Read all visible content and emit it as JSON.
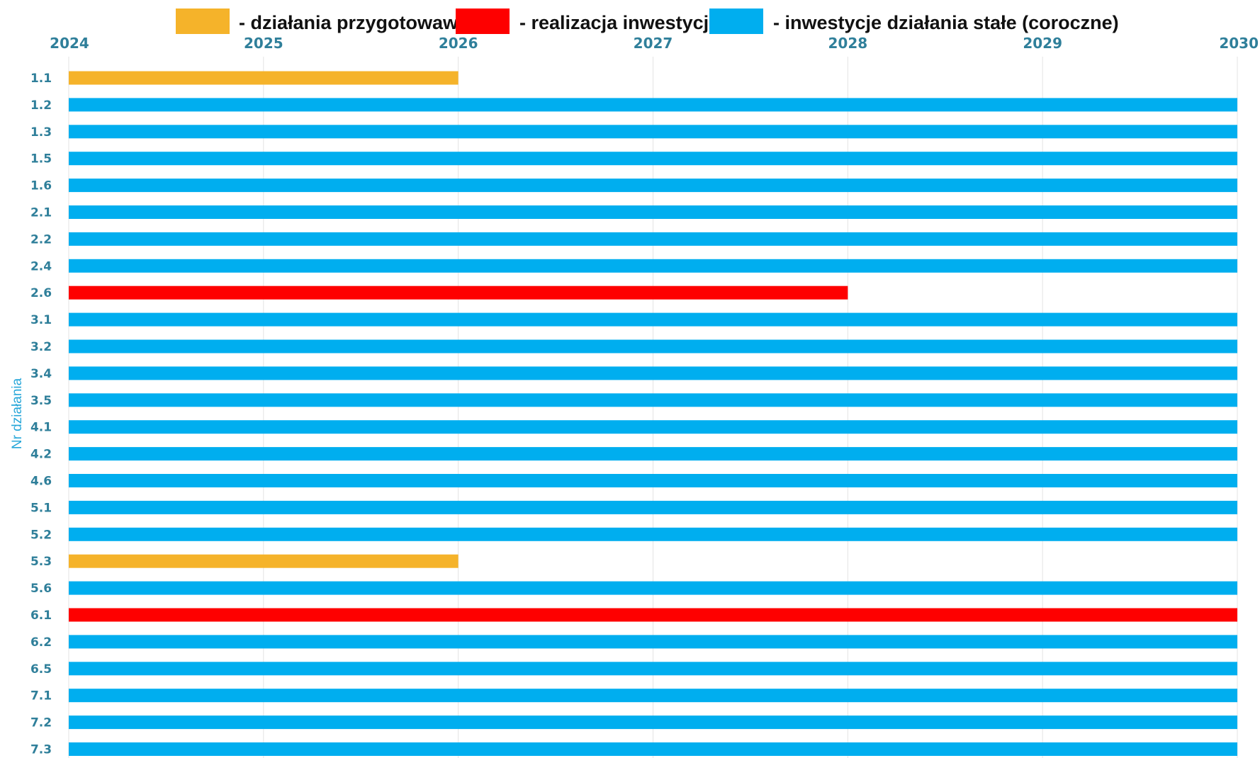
{
  "chart_data": {
    "type": "bar",
    "orientation": "horizontal-gantt",
    "ylabel": "Nr działania",
    "xlabel": "",
    "xlim": [
      2024,
      2030
    ],
    "x_ticks": [
      "2024",
      "2025",
      "2026",
      "2027",
      "2028",
      "2029",
      "2030"
    ],
    "grid": true,
    "legend_position": "top",
    "legend": [
      {
        "key": "prep",
        "label": "- działania przygotowawcze",
        "color": "#f5b32a"
      },
      {
        "key": "impl",
        "label": "- realizacja inwestycji",
        "color": "#fe0000"
      },
      {
        "key": "perm",
        "label": "- inwestycje działania stałe (coroczne)",
        "color": "#00aeef"
      }
    ],
    "categories": [
      "1.1",
      "1.2",
      "1.3",
      "1.5",
      "1.6",
      "2.1",
      "2.2",
      "2.4",
      "2.6",
      "3.1",
      "3.2",
      "3.4",
      "3.5",
      "4.1",
      "4.2",
      "4.6",
      "5.1",
      "5.2",
      "5.3",
      "5.6",
      "6.1",
      "6.2",
      "6.5",
      "7.1",
      "7.2",
      "7.3"
    ],
    "bars": [
      {
        "category": "1.1",
        "start": 2024,
        "end": 2026,
        "type": "prep"
      },
      {
        "category": "1.2",
        "start": 2024,
        "end": 2030,
        "type": "perm"
      },
      {
        "category": "1.3",
        "start": 2024,
        "end": 2030,
        "type": "perm"
      },
      {
        "category": "1.5",
        "start": 2024,
        "end": 2030,
        "type": "perm"
      },
      {
        "category": "1.6",
        "start": 2024,
        "end": 2030,
        "type": "perm"
      },
      {
        "category": "2.1",
        "start": 2024,
        "end": 2030,
        "type": "perm"
      },
      {
        "category": "2.2",
        "start": 2024,
        "end": 2030,
        "type": "perm"
      },
      {
        "category": "2.4",
        "start": 2024,
        "end": 2030,
        "type": "perm"
      },
      {
        "category": "2.6",
        "start": 2024,
        "end": 2028,
        "type": "impl"
      },
      {
        "category": "3.1",
        "start": 2024,
        "end": 2030,
        "type": "perm"
      },
      {
        "category": "3.2",
        "start": 2024,
        "end": 2030,
        "type": "perm"
      },
      {
        "category": "3.4",
        "start": 2024,
        "end": 2030,
        "type": "perm"
      },
      {
        "category": "3.5",
        "start": 2024,
        "end": 2030,
        "type": "perm"
      },
      {
        "category": "4.1",
        "start": 2024,
        "end": 2030,
        "type": "perm"
      },
      {
        "category": "4.2",
        "start": 2024,
        "end": 2030,
        "type": "perm"
      },
      {
        "category": "4.6",
        "start": 2024,
        "end": 2030,
        "type": "perm"
      },
      {
        "category": "5.1",
        "start": 2024,
        "end": 2030,
        "type": "perm"
      },
      {
        "category": "5.2",
        "start": 2024,
        "end": 2030,
        "type": "perm"
      },
      {
        "category": "5.3",
        "start": 2024,
        "end": 2026,
        "type": "prep"
      },
      {
        "category": "5.6",
        "start": 2024,
        "end": 2030,
        "type": "perm"
      },
      {
        "category": "6.1",
        "start": 2024,
        "end": 2030,
        "type": "impl"
      },
      {
        "category": "6.2",
        "start": 2024,
        "end": 2030,
        "type": "perm"
      },
      {
        "category": "6.5",
        "start": 2024,
        "end": 2030,
        "type": "perm"
      },
      {
        "category": "7.1",
        "start": 2024,
        "end": 2030,
        "type": "perm"
      },
      {
        "category": "7.2",
        "start": 2024,
        "end": 2030,
        "type": "perm"
      },
      {
        "category": "7.3",
        "start": 2024,
        "end": 2030,
        "type": "perm"
      }
    ]
  }
}
